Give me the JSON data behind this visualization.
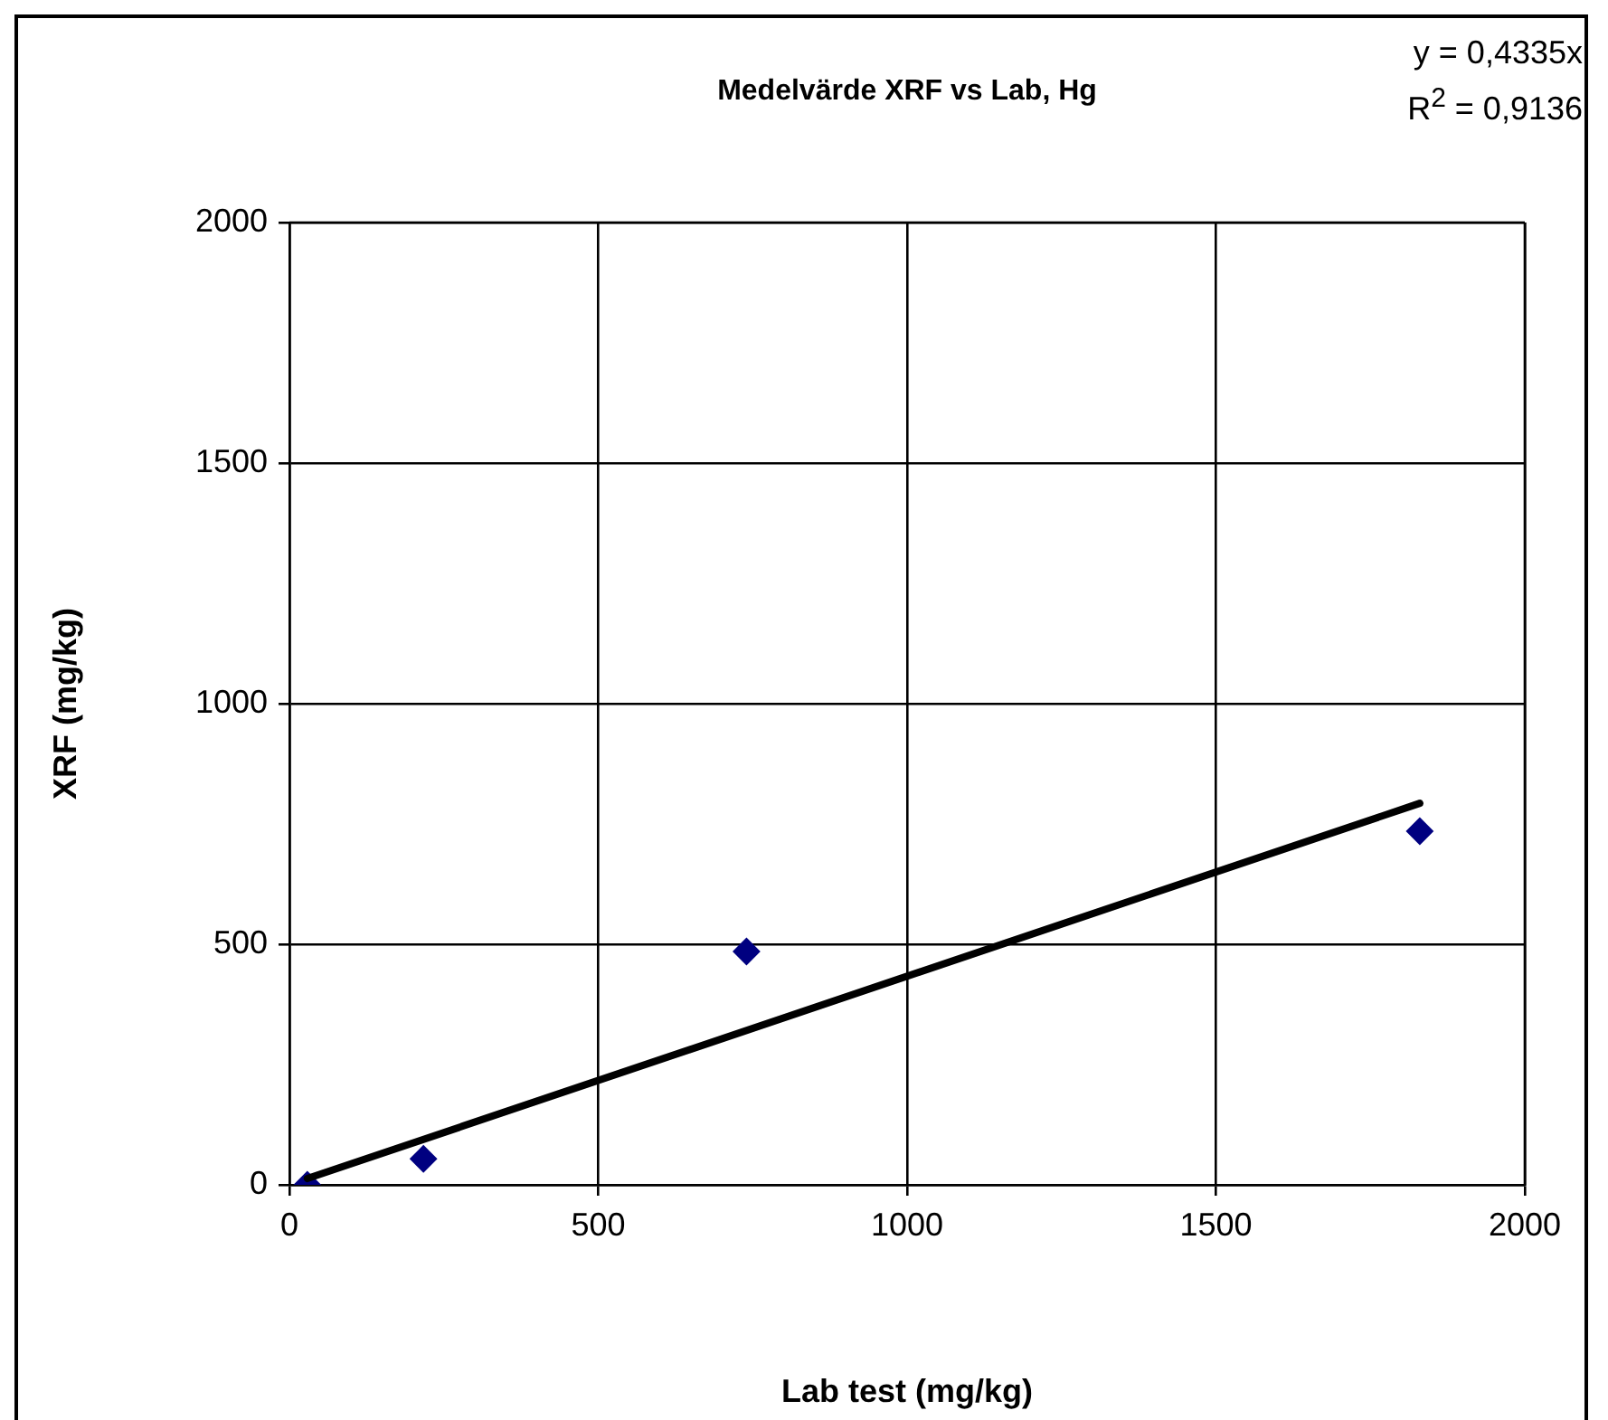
{
  "chart_data": {
    "type": "scatter",
    "title": "Medelvärde XRF vs Lab, Hg",
    "xlabel": "Lab test (mg/kg)",
    "ylabel": "XRF (mg/kg)",
    "annotations": [
      "y = 0,4335x",
      "R$^{2}$ = 0,9136"
    ],
    "series": [
      {
        "color": "#000080",
        "x": [
          29,
          217,
          740,
          1830
        ],
        "values": [
          0,
          54,
          485,
          735
        ],
        "marker": "diamond"
      },
      {
        "type": "line",
        "color": "#000000",
        "x": [
          29,
          1830
        ],
        "values": [
          13,
          793
        ],
        "marker": "none"
      }
    ],
    "xlim": [
      0,
      2000
    ],
    "ylim": [
      0,
      2000
    ],
    "xticks": [
      0,
      500,
      1000,
      1500,
      2000
    ],
    "yticks": [
      0,
      500,
      1000,
      1500,
      2000
    ],
    "grid": true
  }
}
